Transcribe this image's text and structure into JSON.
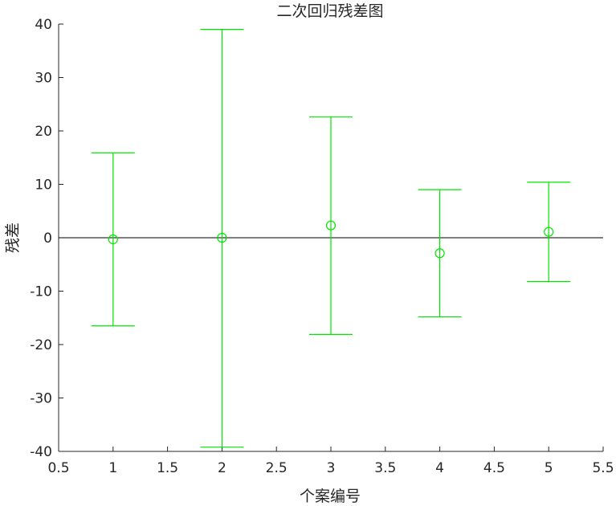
{
  "chart_data": {
    "type": "scatter",
    "title": "二次回归残差图",
    "xlabel": "个案编号",
    "ylabel": "残差",
    "xlim": [
      0.5,
      5.5
    ],
    "ylim": [
      -40,
      40
    ],
    "xticks": [
      "0.5",
      "1",
      "1.5",
      "2",
      "2.5",
      "3",
      "3.5",
      "4",
      "4.5",
      "5",
      "5.5"
    ],
    "yticks": [
      "-40",
      "-30",
      "-20",
      "-10",
      "0",
      "10",
      "20",
      "30",
      "40"
    ],
    "grid": false,
    "reference_line_y": 0,
    "points": [
      {
        "x": 1,
        "y": -0.3,
        "lower": -16.5,
        "upper": 15.9
      },
      {
        "x": 2,
        "y": 0.0,
        "lower": -39.2,
        "upper": 39.0
      },
      {
        "x": 3,
        "y": 2.3,
        "lower": -18.1,
        "upper": 22.6
      },
      {
        "x": 4,
        "y": -2.9,
        "lower": -14.8,
        "upper": 9.0
      },
      {
        "x": 5,
        "y": 1.1,
        "lower": -8.2,
        "upper": 10.4
      }
    ],
    "colors": {
      "marker": "#00e600",
      "zero_line": "#000000",
      "axis": "#262626"
    }
  }
}
